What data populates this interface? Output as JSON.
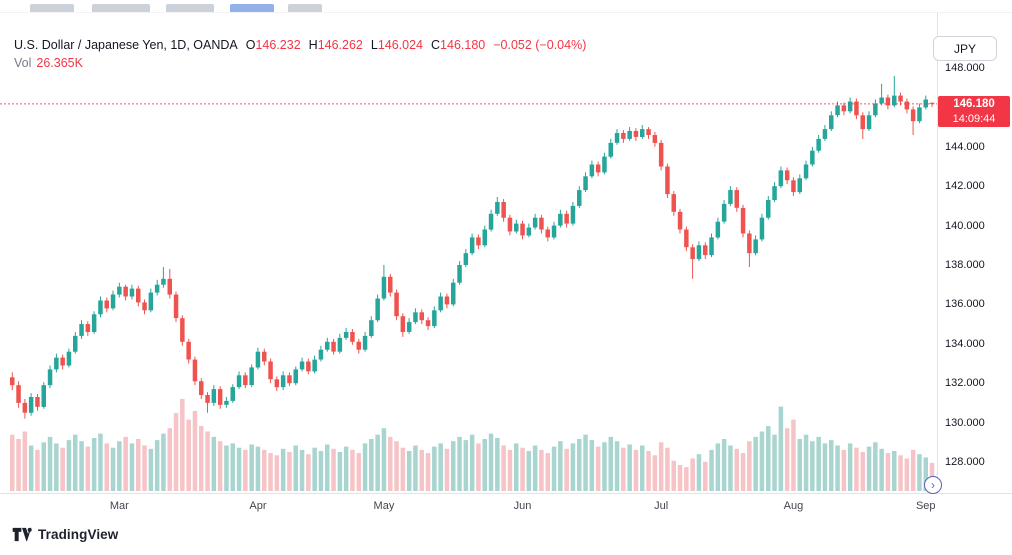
{
  "legend": {
    "symbol_title": "U.S. Dollar / Japanese Yen, 1D, OANDA",
    "ohlc": {
      "o_label": "O",
      "o": "146.232",
      "h_label": "H",
      "h": "146.262",
      "l_label": "L",
      "l": "146.024",
      "c_label": "C",
      "c": "146.180",
      "change": "−0.052 (−0.04%)"
    },
    "vol_label": "Vol",
    "vol_value": "26.365K"
  },
  "currency_button": "JPY",
  "price_badge": {
    "price": "146.180",
    "countdown": "14:09:44"
  },
  "price_scale": {
    "labels": [
      "148.000",
      "146.000",
      "144.000",
      "142.000",
      "140.000",
      "138.000",
      "136.000",
      "134.000",
      "132.000",
      "130.000",
      "128.000"
    ]
  },
  "footer": {
    "brand": "TradingView"
  },
  "rt_glyph": "›",
  "colors": {
    "up": "#26a69a",
    "down": "#ef5350",
    "vol_up": "#a8d5cf",
    "vol_down": "#f6c3c6",
    "text_red": "#f23645",
    "axis_line": "#e0e3eb"
  },
  "chart_data": {
    "type": "candlestick",
    "title": "U.S. Dollar / Japanese Yen, 1D, OANDA",
    "legend_position": "top-left",
    "grid": false,
    "x_axis_labels": [
      "Mar",
      "Apr",
      "May",
      "Jun",
      "Jul",
      "Aug",
      "Sep"
    ],
    "month_label_indices": [
      17,
      39,
      59,
      81,
      103,
      124,
      145
    ],
    "y_ticks": [
      148,
      146,
      144,
      142,
      140,
      138,
      136,
      134,
      132,
      130,
      128
    ],
    "y_range_displayed": [
      127.0,
      148.8
    ],
    "current_price": 146.18,
    "current_volume_k": 26.365,
    "ohlc_last": {
      "open": 146.232,
      "high": 146.262,
      "low": 146.024,
      "close": 146.18,
      "change": -0.052,
      "change_pct": -0.04
    },
    "candles": [
      [
        132.3,
        132.55,
        131.65,
        131.9
      ],
      [
        131.9,
        132.1,
        130.75,
        131.0
      ],
      [
        131.0,
        131.2,
        130.2,
        130.5
      ],
      [
        130.5,
        131.5,
        130.35,
        131.3
      ],
      [
        131.3,
        131.45,
        130.6,
        130.8
      ],
      [
        130.8,
        132.05,
        130.7,
        131.9
      ],
      [
        131.9,
        132.9,
        131.75,
        132.7
      ],
      [
        132.7,
        133.5,
        132.55,
        133.3
      ],
      [
        133.3,
        133.45,
        132.7,
        132.9
      ],
      [
        132.9,
        133.75,
        132.8,
        133.6
      ],
      [
        133.6,
        134.6,
        133.5,
        134.4
      ],
      [
        134.4,
        135.2,
        134.25,
        135.0
      ],
      [
        135.0,
        135.15,
        134.4,
        134.6
      ],
      [
        134.6,
        135.65,
        134.5,
        135.5
      ],
      [
        135.5,
        136.4,
        135.35,
        136.2
      ],
      [
        136.2,
        136.35,
        135.6,
        135.8
      ],
      [
        135.8,
        136.7,
        135.7,
        136.5
      ],
      [
        136.5,
        137.1,
        136.35,
        136.9
      ],
      [
        136.9,
        137.0,
        136.2,
        136.4
      ],
      [
        136.4,
        137.0,
        136.25,
        136.8
      ],
      [
        136.8,
        136.95,
        135.9,
        136.1
      ],
      [
        136.1,
        136.25,
        135.5,
        135.7
      ],
      [
        135.7,
        136.8,
        135.6,
        136.6
      ],
      [
        136.6,
        137.25,
        136.45,
        137.0
      ],
      [
        137.0,
        137.9,
        136.85,
        137.3
      ],
      [
        137.3,
        137.8,
        136.3,
        136.5
      ],
      [
        136.5,
        136.65,
        135.1,
        135.3
      ],
      [
        135.3,
        135.45,
        133.9,
        134.1
      ],
      [
        134.1,
        134.25,
        133.0,
        133.2
      ],
      [
        133.2,
        133.35,
        131.9,
        132.1
      ],
      [
        132.1,
        132.25,
        131.2,
        131.4
      ],
      [
        131.4,
        131.55,
        130.5,
        131.0
      ],
      [
        131.0,
        131.9,
        130.85,
        131.7
      ],
      [
        131.7,
        131.85,
        130.7,
        130.9
      ],
      [
        130.9,
        131.3,
        130.75,
        131.1
      ],
      [
        131.1,
        131.95,
        131.0,
        131.8
      ],
      [
        131.8,
        132.6,
        131.7,
        132.4
      ],
      [
        132.4,
        132.55,
        131.75,
        131.9
      ],
      [
        131.9,
        132.95,
        131.8,
        132.8
      ],
      [
        132.8,
        133.8,
        132.7,
        133.6
      ],
      [
        133.6,
        133.75,
        132.9,
        133.1
      ],
      [
        133.1,
        133.25,
        132.0,
        132.2
      ],
      [
        132.2,
        132.35,
        131.6,
        131.8
      ],
      [
        131.8,
        132.6,
        131.65,
        132.4
      ],
      [
        132.4,
        132.55,
        131.85,
        132.0
      ],
      [
        132.0,
        132.85,
        131.9,
        132.7
      ],
      [
        132.7,
        133.3,
        132.6,
        133.1
      ],
      [
        133.1,
        133.25,
        132.45,
        132.6
      ],
      [
        132.6,
        133.4,
        132.5,
        133.2
      ],
      [
        133.2,
        133.9,
        133.1,
        133.7
      ],
      [
        133.7,
        134.3,
        133.6,
        134.1
      ],
      [
        134.1,
        134.25,
        133.45,
        133.6
      ],
      [
        133.6,
        134.5,
        133.5,
        134.3
      ],
      [
        134.3,
        134.8,
        134.2,
        134.6
      ],
      [
        134.6,
        134.75,
        133.95,
        134.1
      ],
      [
        134.1,
        134.25,
        133.5,
        133.7
      ],
      [
        133.7,
        134.6,
        133.6,
        134.4
      ],
      [
        134.4,
        135.4,
        134.3,
        135.2
      ],
      [
        135.2,
        136.5,
        135.1,
        136.3
      ],
      [
        136.3,
        138.0,
        136.2,
        137.4
      ],
      [
        137.4,
        137.55,
        136.4,
        136.6
      ],
      [
        136.6,
        136.75,
        135.2,
        135.4
      ],
      [
        135.4,
        135.55,
        134.35,
        134.6
      ],
      [
        134.6,
        135.3,
        134.5,
        135.1
      ],
      [
        135.1,
        135.8,
        135.0,
        135.6
      ],
      [
        135.6,
        135.75,
        135.0,
        135.2
      ],
      [
        135.2,
        135.35,
        134.7,
        134.9
      ],
      [
        134.9,
        135.9,
        134.8,
        135.7
      ],
      [
        135.7,
        136.6,
        135.6,
        136.4
      ],
      [
        136.4,
        136.55,
        135.8,
        136.0
      ],
      [
        136.0,
        137.3,
        135.9,
        137.1
      ],
      [
        137.1,
        138.2,
        137.0,
        138.0
      ],
      [
        138.0,
        138.8,
        137.9,
        138.6
      ],
      [
        138.6,
        139.6,
        138.5,
        139.4
      ],
      [
        139.4,
        139.55,
        138.8,
        139.0
      ],
      [
        139.0,
        140.0,
        138.9,
        139.8
      ],
      [
        139.8,
        140.8,
        139.7,
        140.6
      ],
      [
        140.6,
        141.45,
        140.5,
        141.2
      ],
      [
        141.2,
        141.35,
        140.2,
        140.4
      ],
      [
        140.4,
        140.55,
        139.5,
        139.7
      ],
      [
        139.7,
        140.3,
        139.6,
        140.1
      ],
      [
        140.1,
        140.25,
        139.3,
        139.5
      ],
      [
        139.5,
        140.1,
        139.4,
        139.9
      ],
      [
        139.9,
        140.6,
        139.8,
        140.4
      ],
      [
        140.4,
        140.55,
        139.6,
        139.8
      ],
      [
        139.8,
        139.95,
        139.2,
        139.4
      ],
      [
        139.4,
        140.2,
        139.3,
        140.0
      ],
      [
        140.0,
        140.8,
        139.9,
        140.6
      ],
      [
        140.6,
        140.75,
        139.9,
        140.1
      ],
      [
        140.1,
        141.2,
        140.0,
        141.0
      ],
      [
        141.0,
        142.0,
        140.9,
        141.8
      ],
      [
        141.8,
        142.7,
        141.7,
        142.5
      ],
      [
        142.5,
        143.3,
        142.4,
        143.1
      ],
      [
        143.1,
        143.25,
        142.5,
        142.7
      ],
      [
        142.7,
        143.7,
        142.6,
        143.5
      ],
      [
        143.5,
        144.4,
        143.4,
        144.2
      ],
      [
        144.2,
        144.9,
        144.1,
        144.7
      ],
      [
        144.7,
        144.85,
        144.2,
        144.4
      ],
      [
        144.4,
        145.0,
        144.3,
        144.8
      ],
      [
        144.8,
        144.95,
        144.3,
        144.5
      ],
      [
        144.5,
        145.1,
        144.4,
        144.9
      ],
      [
        144.9,
        145.0,
        144.4,
        144.6
      ],
      [
        144.6,
        144.75,
        144.0,
        144.2
      ],
      [
        144.2,
        144.35,
        142.8,
        143.0
      ],
      [
        143.0,
        143.15,
        141.4,
        141.6
      ],
      [
        141.6,
        141.75,
        140.5,
        140.7
      ],
      [
        140.7,
        140.85,
        139.6,
        139.8
      ],
      [
        139.8,
        139.95,
        138.7,
        138.9
      ],
      [
        138.9,
        139.05,
        137.3,
        138.3
      ],
      [
        138.3,
        139.2,
        138.2,
        139.0
      ],
      [
        139.0,
        139.15,
        138.3,
        138.5
      ],
      [
        138.5,
        139.6,
        138.4,
        139.4
      ],
      [
        139.4,
        140.4,
        139.3,
        140.2
      ],
      [
        140.2,
        141.3,
        140.1,
        141.1
      ],
      [
        141.1,
        142.0,
        141.0,
        141.8
      ],
      [
        141.8,
        141.95,
        140.7,
        140.9
      ],
      [
        140.9,
        141.05,
        139.4,
        139.6
      ],
      [
        139.6,
        139.75,
        137.9,
        138.6
      ],
      [
        138.6,
        139.5,
        138.5,
        139.3
      ],
      [
        139.3,
        140.6,
        139.2,
        140.4
      ],
      [
        140.4,
        141.5,
        140.3,
        141.3
      ],
      [
        141.3,
        142.2,
        141.2,
        142.0
      ],
      [
        142.0,
        143.0,
        141.9,
        142.8
      ],
      [
        142.8,
        142.95,
        142.1,
        142.3
      ],
      [
        142.3,
        142.45,
        141.5,
        141.7
      ],
      [
        141.7,
        142.6,
        141.6,
        142.4
      ],
      [
        142.4,
        143.3,
        142.3,
        143.1
      ],
      [
        143.1,
        144.0,
        143.0,
        143.8
      ],
      [
        143.8,
        144.6,
        143.7,
        144.4
      ],
      [
        144.4,
        145.1,
        144.3,
        144.9
      ],
      [
        144.9,
        145.8,
        144.8,
        145.6
      ],
      [
        145.6,
        146.3,
        145.5,
        146.1
      ],
      [
        146.1,
        146.25,
        145.6,
        145.8
      ],
      [
        145.8,
        146.5,
        145.7,
        146.3
      ],
      [
        146.3,
        146.45,
        145.4,
        145.6
      ],
      [
        145.6,
        145.75,
        144.4,
        144.9
      ],
      [
        144.9,
        145.8,
        144.8,
        145.6
      ],
      [
        145.6,
        146.4,
        145.5,
        146.2
      ],
      [
        146.2,
        147.2,
        146.1,
        146.5
      ],
      [
        146.5,
        146.65,
        145.9,
        146.1
      ],
      [
        146.1,
        147.6,
        146.0,
        146.6
      ],
      [
        146.6,
        146.75,
        146.1,
        146.3
      ],
      [
        146.3,
        146.45,
        145.7,
        145.9
      ],
      [
        145.9,
        146.05,
        144.6,
        145.3
      ],
      [
        145.3,
        146.2,
        145.2,
        146.0
      ],
      [
        146.0,
        146.6,
        145.9,
        146.4
      ],
      [
        146.232,
        146.262,
        146.024,
        146.18
      ]
    ],
    "volumes_k": [
      52,
      48,
      55,
      42,
      38,
      45,
      50,
      44,
      40,
      47,
      52,
      46,
      41,
      49,
      53,
      44,
      40,
      46,
      50,
      44,
      48,
      42,
      39,
      47,
      53,
      58,
      72,
      85,
      66,
      74,
      60,
      55,
      50,
      46,
      42,
      44,
      40,
      38,
      43,
      41,
      38,
      35,
      33,
      39,
      36,
      42,
      38,
      34,
      40,
      37,
      43,
      39,
      36,
      41,
      38,
      35,
      44,
      48,
      52,
      58,
      50,
      46,
      40,
      37,
      42,
      38,
      35,
      41,
      44,
      39,
      46,
      50,
      47,
      52,
      44,
      48,
      53,
      49,
      42,
      38,
      44,
      40,
      37,
      42,
      38,
      35,
      41,
      46,
      39,
      44,
      48,
      52,
      47,
      41,
      45,
      50,
      46,
      40,
      43,
      38,
      42,
      37,
      33,
      45,
      40,
      28,
      24,
      22,
      30,
      34,
      27,
      38,
      44,
      48,
      42,
      39,
      35,
      46,
      50,
      55,
      60,
      52,
      78,
      58,
      66,
      48,
      52,
      46,
      50,
      44,
      47,
      42,
      38,
      44,
      40,
      36,
      41,
      45,
      39,
      35,
      37,
      33,
      30,
      38,
      34,
      31,
      26
    ]
  }
}
